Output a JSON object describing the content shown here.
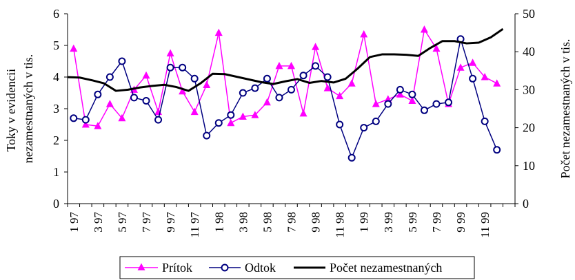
{
  "chart_data": {
    "type": "line",
    "title": "",
    "x_ticks": [
      "1 97",
      "3 97",
      "5 97",
      "7 97",
      "9 97",
      "11 97",
      "1 98",
      "3 98",
      "5 98",
      "7 98",
      "9 98",
      "11 98",
      "1 99",
      "3 99",
      "5 99",
      "7 99",
      "9 99",
      "11 99"
    ],
    "ylabel_left": "Toky v evidencii nezamestnaných v tis.",
    "ylabel_left_lines": [
      "Toky v evidencii",
      "nezamestnaných v tis."
    ],
    "ylabel_right": "Počet nezamestnaných v tis.",
    "ylim_left": [
      0,
      6
    ],
    "ylim_right": [
      0,
      50
    ],
    "yticks_left": [
      0,
      1,
      2,
      3,
      4,
      5,
      6
    ],
    "yticks_right": [
      0,
      10,
      20,
      30,
      40,
      50
    ],
    "legend_position": "bottom",
    "series": [
      {
        "name": "Prítok",
        "axis": "left",
        "color": "#ff00ff",
        "marker": "triangle",
        "values": [
          4.9,
          2.5,
          2.45,
          3.15,
          2.7,
          3.6,
          4.05,
          2.9,
          4.75,
          3.55,
          2.9,
          3.75,
          5.4,
          2.55,
          2.75,
          2.8,
          3.2,
          4.35,
          4.35,
          2.85,
          4.95,
          3.65,
          3.4,
          3.8,
          5.35,
          3.15,
          3.3,
          3.45,
          3.25,
          5.5,
          4.9,
          3.15,
          4.3,
          4.45,
          4.0,
          3.8
        ]
      },
      {
        "name": "Odtok",
        "axis": "left",
        "color": "#000080",
        "marker": "circle",
        "values": [
          2.7,
          2.65,
          3.45,
          4.0,
          4.5,
          3.35,
          3.25,
          2.65,
          4.3,
          4.3,
          3.95,
          2.15,
          2.55,
          2.8,
          3.5,
          3.65,
          3.95,
          3.35,
          3.6,
          4.05,
          4.35,
          4.0,
          2.5,
          1.45,
          2.4,
          2.6,
          3.15,
          3.6,
          3.45,
          2.95,
          3.15,
          3.2,
          5.2,
          3.95,
          2.6,
          1.7
        ]
      },
      {
        "name": "Počet nezamestnaných",
        "axis": "right",
        "color": "#000000",
        "marker": "none",
        "values": [
          33.3,
          33.2,
          32.5,
          31.7,
          29.7,
          30.0,
          30.6,
          31.0,
          31.3,
          30.7,
          29.7,
          31.7,
          34.2,
          34.1,
          33.4,
          32.7,
          32.0,
          31.5,
          32.2,
          32.8,
          31.8,
          32.3,
          31.9,
          32.9,
          35.6,
          38.6,
          39.3,
          39.3,
          39.2,
          38.9,
          41.0,
          42.8,
          42.8,
          42.2,
          42.4,
          43.8,
          46.0
        ]
      }
    ]
  }
}
